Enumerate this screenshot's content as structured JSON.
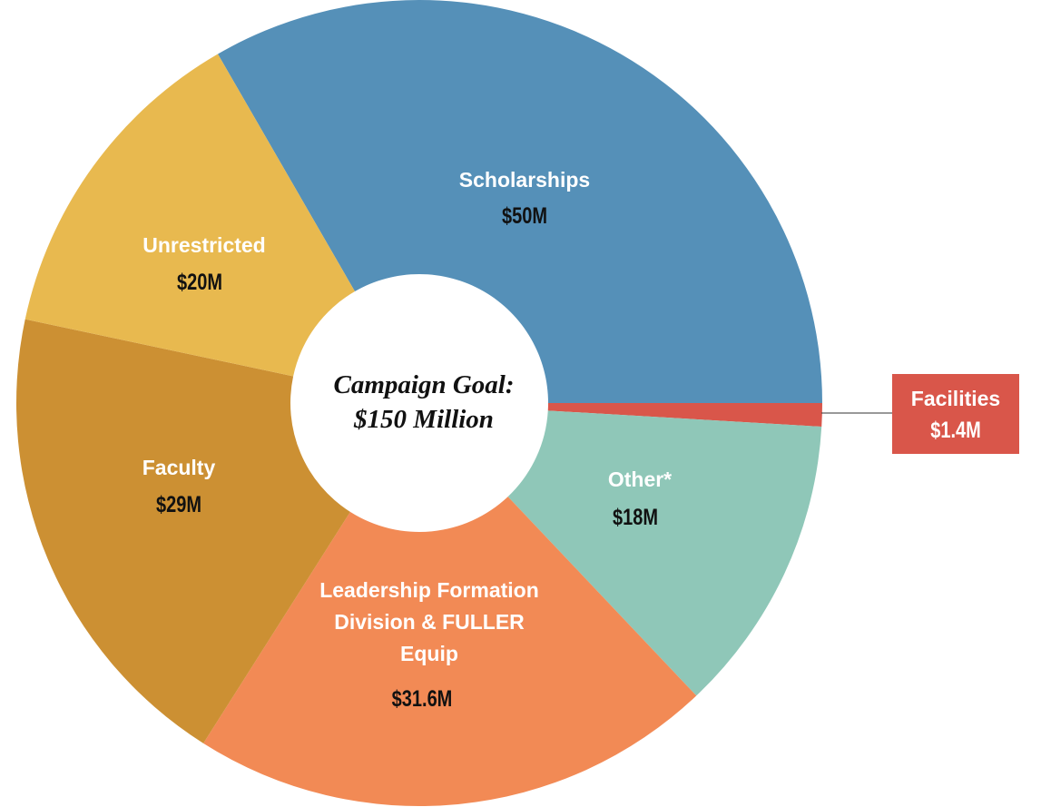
{
  "chart_data": {
    "type": "donut",
    "center_label": [
      "Campaign Goal:",
      "$150 Million"
    ],
    "categories": [
      "Scholarships",
      "Facilities",
      "Other*",
      "Leadership Formation Division & FULLER Equip",
      "Faculty",
      "Unrestricted"
    ],
    "values": [
      50,
      1.4,
      18,
      31.6,
      29,
      20
    ],
    "value_labels": [
      "$50M",
      "$1.4M",
      "$18M",
      "$31.6M",
      "$29M",
      "$20M"
    ],
    "colors": [
      "#5590b8",
      "#d9564a",
      "#8fc7b8",
      "#f28a55",
      "#cc9033",
      "#e8b94f"
    ]
  }
}
